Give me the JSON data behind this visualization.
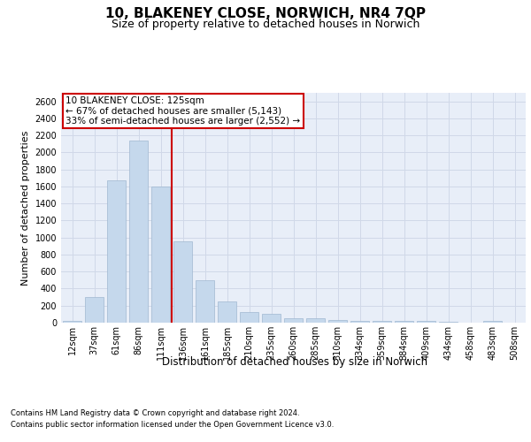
{
  "title": "10, BLAKENEY CLOSE, NORWICH, NR4 7QP",
  "subtitle": "Size of property relative to detached houses in Norwich",
  "xlabel": "Distribution of detached houses by size in Norwich",
  "ylabel": "Number of detached properties",
  "footnote1": "Contains HM Land Registry data © Crown copyright and database right 2024.",
  "footnote2": "Contains public sector information licensed under the Open Government Licence v3.0.",
  "bar_categories": [
    "12sqm",
    "37sqm",
    "61sqm",
    "86sqm",
    "111sqm",
    "136sqm",
    "161sqm",
    "185sqm",
    "210sqm",
    "235sqm",
    "260sqm",
    "285sqm",
    "310sqm",
    "334sqm",
    "359sqm",
    "384sqm",
    "409sqm",
    "434sqm",
    "458sqm",
    "483sqm",
    "508sqm"
  ],
  "bar_values": [
    25,
    300,
    1670,
    2140,
    1600,
    960,
    500,
    250,
    120,
    100,
    55,
    55,
    35,
    20,
    25,
    18,
    25,
    15,
    5,
    25,
    5
  ],
  "bar_color": "#c5d8ec",
  "bar_edge_color": "#a0b8d0",
  "property_line_x": 4.5,
  "annotation_text1": "10 BLAKENEY CLOSE: 125sqm",
  "annotation_text2": "← 67% of detached houses are smaller (5,143)",
  "annotation_text3": "33% of semi-detached houses are larger (2,552) →",
  "annotation_box_color": "#ffffff",
  "annotation_border_color": "#cc0000",
  "vline_color": "#cc0000",
  "ylim": [
    0,
    2700
  ],
  "yticks": [
    0,
    200,
    400,
    600,
    800,
    1000,
    1200,
    1400,
    1600,
    1800,
    2000,
    2200,
    2400,
    2600
  ],
  "grid_color": "#d0d8e8",
  "background_color": "#e8eef8",
  "fig_background": "#ffffff",
  "title_fontsize": 11,
  "subtitle_fontsize": 9,
  "xlabel_fontsize": 8.5,
  "ylabel_fontsize": 8,
  "tick_fontsize": 7,
  "footnote_fontsize": 6,
  "annotation_fontsize": 7.5
}
